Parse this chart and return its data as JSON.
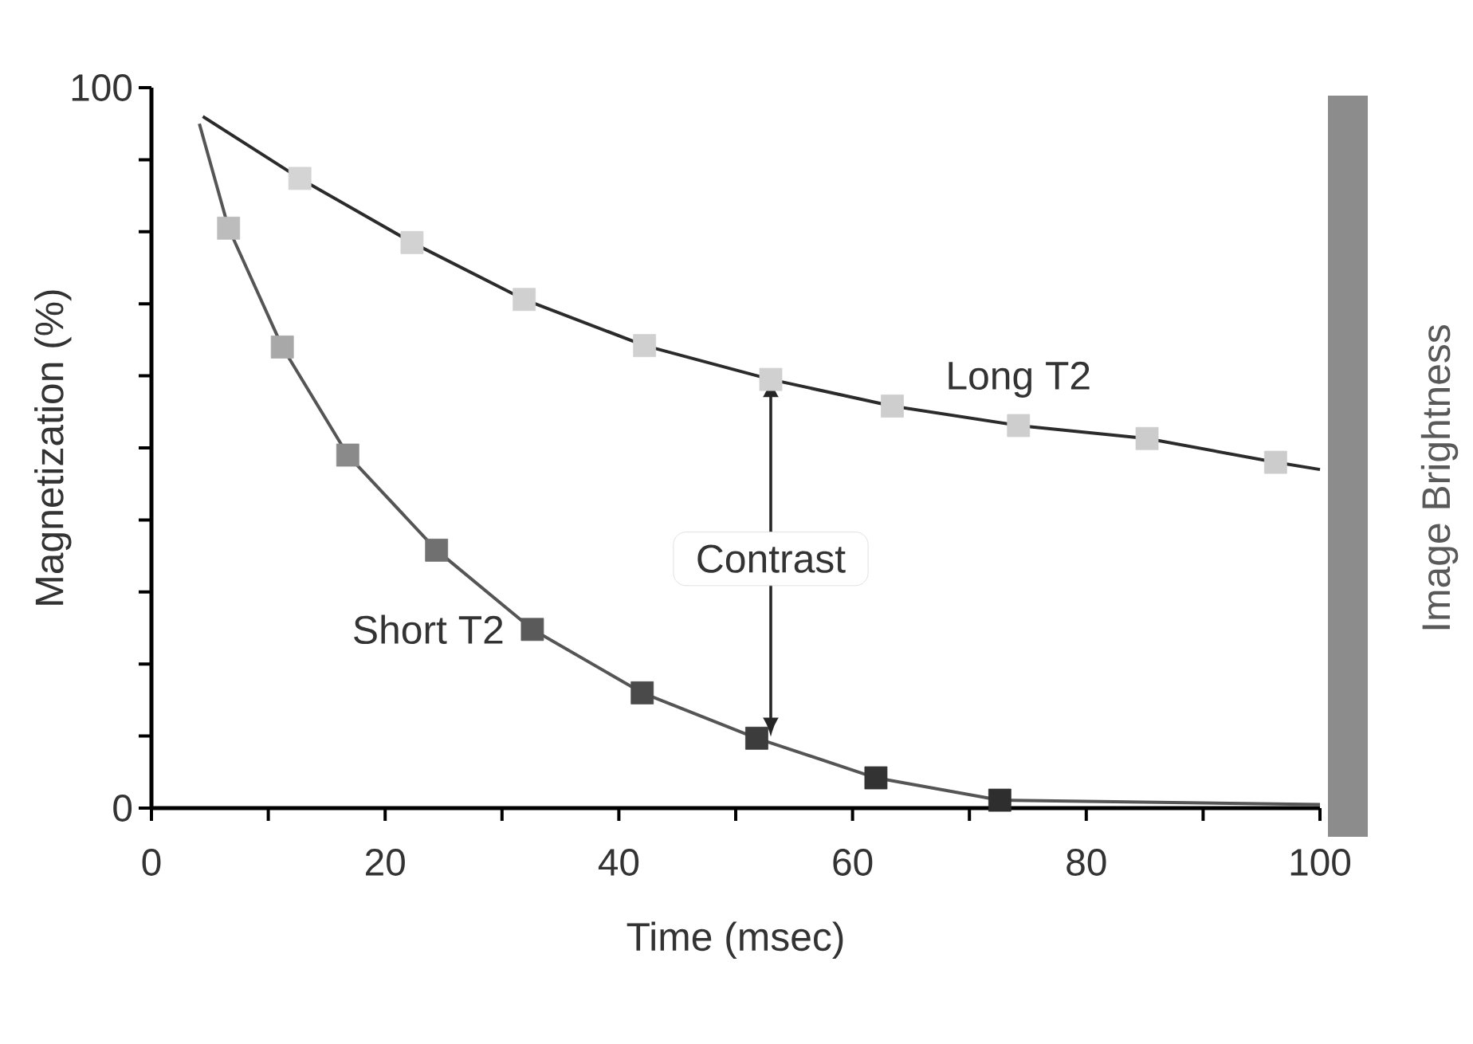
{
  "chart_data": {
    "type": "line",
    "xlabel": "Time (msec)",
    "ylabel": "Magnetization (%)",
    "clabel": "Image Brightness",
    "xlim": [
      0,
      100
    ],
    "ylim": [
      0,
      100
    ],
    "xticks": [
      0,
      {
        "value": 10,
        "label": null
      },
      20,
      {
        "value": 30,
        "label": null
      },
      40,
      {
        "value": 50,
        "label": null
      },
      60,
      {
        "value": 70,
        "label": null
      },
      80,
      {
        "value": 90,
        "label": null
      },
      100
    ],
    "yticks": [
      0,
      {
        "value": 10,
        "label": null
      },
      {
        "value": 20,
        "label": null
      },
      {
        "value": 30,
        "label": null
      },
      {
        "value": 40,
        "label": null
      },
      {
        "value": 50,
        "label": null
      },
      {
        "value": 60,
        "label": null
      },
      {
        "value": 70,
        "label": null
      },
      {
        "value": 80,
        "label": null
      },
      {
        "value": 90,
        "label": null
      },
      100
    ],
    "marker": "square",
    "line_style": "solid",
    "grid": false,
    "series": [
      {
        "name": "Long T2",
        "color": "#2b2b2b",
        "x": [
          4.4,
          12.7,
          22.3,
          31.9,
          42.2,
          53,
          63.4,
          74.2,
          85.2,
          96.2,
          100
        ],
        "values": [
          96,
          87.4,
          78.5,
          70.6,
          64.2,
          59.5,
          55.8,
          53.1,
          51.3,
          48,
          47
        ],
        "colors": [
          null,
          "#d4d4d4",
          "#d2d2d2",
          "#d0d0d0",
          "#d0d0d0",
          "#d0d0d0",
          "#cecece",
          "#cecece",
          "#cccccc",
          "#cccccc",
          null
        ]
      },
      {
        "name": "Short T2",
        "color": "#555555",
        "x": [
          4.1,
          6.6,
          11.2,
          16.8,
          24.4,
          32.6,
          42,
          51.8,
          62,
          72.6,
          100
        ],
        "values": [
          95,
          80.5,
          64,
          49,
          35.8,
          24.8,
          16,
          9.7,
          4.2,
          1.1,
          0.5
        ],
        "colors": [
          null,
          "#bcbcbc",
          "#a8a8a8",
          "#8a8a8a",
          "#707070",
          "#5a5a5a",
          "#4a4a4a",
          "#3c3c3c",
          "#333333",
          "#2e2e2e",
          null
        ]
      }
    ],
    "annotations": [
      "Contrast"
    ]
  }
}
